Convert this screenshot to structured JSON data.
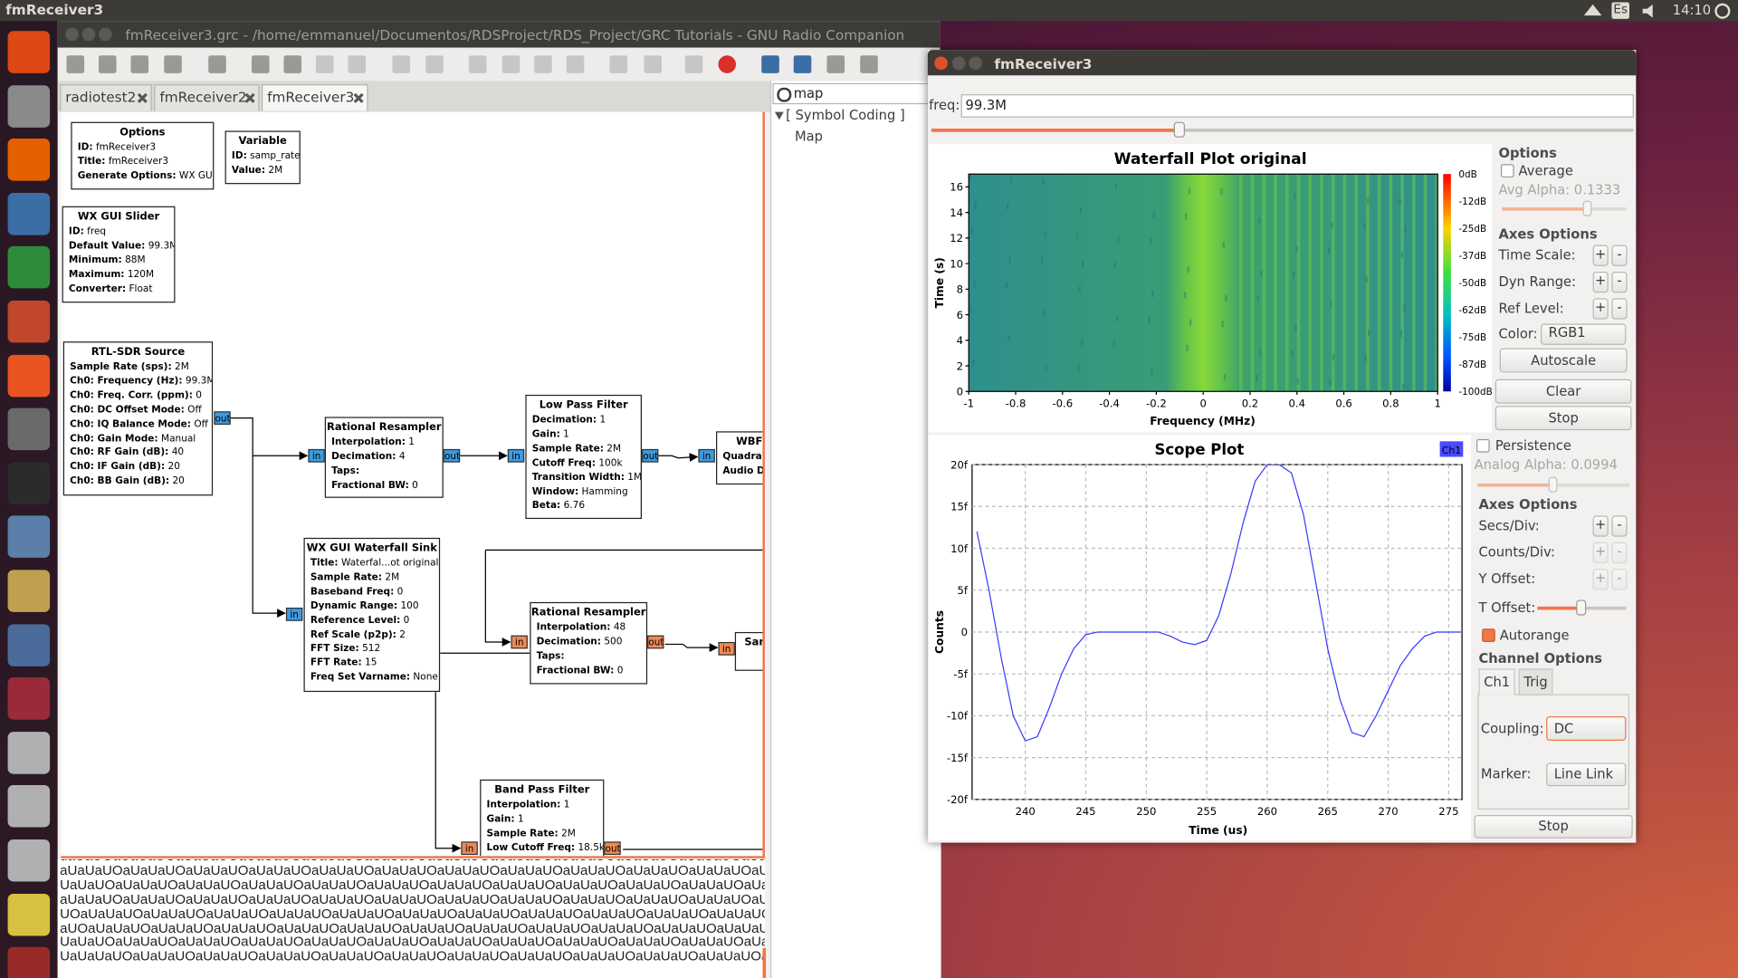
{
  "top_bar": {
    "title": "fmReceiver3",
    "keyboard": "Es",
    "time": "14:10"
  },
  "grc": {
    "title": "fmReceiver3.grc - /home/emmanuel/Documentos/RDSProject/RDS_Project/GRC Tutorials - GNU Radio Companion",
    "tabs": [
      "radiotest2",
      "fmReceiver2",
      "fmReceiver3"
    ],
    "search": "map",
    "tree": {
      "category": "[ Symbol Coding ]",
      "item": "Map"
    },
    "blocks": [
      {
        "title": "Options",
        "params": [
          [
            "ID:",
            "fmReceiver3"
          ],
          [
            "Title:",
            "fmReceiver3"
          ],
          [
            "Generate Options:",
            "WX GUI"
          ]
        ]
      },
      {
        "title": "Variable",
        "params": [
          [
            "ID:",
            "samp_rate"
          ],
          [
            "Value:",
            "2M"
          ]
        ]
      },
      {
        "title": "WX GUI Slider",
        "params": [
          [
            "ID:",
            "freq"
          ],
          [
            "Default Value:",
            "99.3M"
          ],
          [
            "Minimum:",
            "88M"
          ],
          [
            "Maximum:",
            "120M"
          ],
          [
            "Converter:",
            "Float"
          ]
        ]
      },
      {
        "title": "RTL-SDR Source",
        "params": [
          [
            "Sample Rate (sps):",
            "2M"
          ],
          [
            "Ch0: Frequency (Hz):",
            "99.3M"
          ],
          [
            "Ch0: Freq. Corr. (ppm):",
            "0"
          ],
          [
            "Ch0: DC Offset Mode:",
            "Off"
          ],
          [
            "Ch0: IQ Balance Mode:",
            "Off"
          ],
          [
            "Ch0: Gain Mode:",
            "Manual"
          ],
          [
            "Ch0: RF Gain (dB):",
            "40"
          ],
          [
            "Ch0: IF Gain (dB):",
            "20"
          ],
          [
            "Ch0: BB Gain (dB):",
            "20"
          ]
        ],
        "ports": [
          "out"
        ]
      },
      {
        "title": "Rational Resampler",
        "params": [
          [
            "Interpolation:",
            "1"
          ],
          [
            "Decimation:",
            "4"
          ],
          [
            "Taps:"
          ],
          [
            "Fractional BW:",
            "0"
          ]
        ],
        "ports": [
          "in",
          "out"
        ]
      },
      {
        "title": "Low Pass Filter",
        "params": [
          [
            "Decimation:",
            "1"
          ],
          [
            "Gain:",
            "1"
          ],
          [
            "Sample Rate:",
            "2M"
          ],
          [
            "Cutoff Freq:",
            "100k"
          ],
          [
            "Transition Width:",
            "1M"
          ],
          [
            "Window:",
            "Hamming"
          ],
          [
            "Beta:",
            "6.76"
          ]
        ],
        "ports": [
          "in",
          "out"
        ]
      },
      {
        "title": "WBF",
        "params": [
          [
            "Quadra"
          ],
          [
            "Audio D"
          ]
        ],
        "ports": [
          "in"
        ]
      },
      {
        "title": "WX GUI Waterfall Sink",
        "params": [
          [
            "Title:",
            "Waterfal...ot original"
          ],
          [
            "Sample Rate:",
            "2M"
          ],
          [
            "Baseband Freq:",
            "0"
          ],
          [
            "Dynamic Range:",
            "100"
          ],
          [
            "Reference Level:",
            "0"
          ],
          [
            "Ref Scale (p2p):",
            "2"
          ],
          [
            "FFT Size:",
            "512"
          ],
          [
            "FFT Rate:",
            "15"
          ],
          [
            "Freq Set Varname:",
            "None"
          ]
        ],
        "ports": [
          "in"
        ]
      },
      {
        "title": "Rational Resampler",
        "params": [
          [
            "Interpolation:",
            "48"
          ],
          [
            "Decimation:",
            "500"
          ],
          [
            "Taps:"
          ],
          [
            "Fractional BW:",
            "0"
          ]
        ],
        "ports": [
          "in",
          "out"
        ]
      },
      {
        "title": "Sam",
        "params": [],
        "ports": [
          "in"
        ]
      },
      {
        "title": "Band Pass Filter",
        "params": [
          [
            "Interpolation:",
            "1"
          ],
          [
            "Gain:",
            "1"
          ],
          [
            "Sample Rate:",
            "2M"
          ],
          [
            "Low Cutoff Freq:",
            "18.5k"
          ]
        ],
        "ports": [
          "in",
          "out"
        ]
      }
    ],
    "console": [
      "uaUaUOaUaUaUOaUaUaUOaUaUaUOaUaUaUOaUaUaUOaUaUaUOaUaUaUOaUaUaUOaUaUaUOaUaUaUOaUaUaUOaUaUaUO",
      "aUaUaUOaUaUaUOaUaUaUOaUaUaUOaUaUaUOaUaUaUOaUaUaUOaUaUaUOaUaUaUOaUaUaUOaUaUaUOaUaUaUOaUaUaUOaUa",
      "UaUaUOaUaUaUOaUaUaUOaUaUaUOaUaUaUOaUaUaUOaUaUaUOaUaUaUOaUaUaUOaUaUaUOaUaUaUOaUaUaUOaUaUaUOaUaUaUO",
      "aUaUaUOaUaUaUOaUaUaUOaUaUaUOaUaUaUOaUaUaUOaUaUaUOaUaUaUOaUaUaUOaUaUaUOaUaUaUOaUaUaUOaUaUaUOaUaUa",
      "UOaUaUaUOaUaUaUOaUaUaUOaUaUaUOaUaUaUOaUaUaUOaUaUaUOaUaUaUOaUaUaUOaUaUaUOaUaUaUOaUaUaUOaUaUaUOaUaU",
      "aUOaUaUaUOaUaUaUOaUaUaUOaUaUaUOaUaUaUOaUaUaUOaUaUaUOaUaUaUOaUaUaUOaUaUaUOaUaUaUOaUaUaUOaUaUaUOaU",
      "UaUaUOaUaUaUOaUaUaUOaUaUaUOaUaUaUOaUaUaUOaUaUaUOaUaUaUOaUaUaUOaUaUaUOaUaUaUOaUaUaUOaUaUaUO",
      "UaUaUaUOaUaUaUOaUaUaUOaUaUaUOaUaUaUOaUaUaUOaUaUaUOaUaUaUOaUaUaUOaUaUaUOaUaUaUOaUaU"
    ]
  },
  "plot_window": {
    "title": "fmReceiver3",
    "freq_label": "freq:",
    "freq_value": "99.3M",
    "waterfall": {
      "type": "heatmap",
      "title": "Waterfall Plot original",
      "xlabel": "Frequency (MHz)",
      "ylabel": "Time (s)",
      "xlim": [
        -1,
        1
      ],
      "xticks": [
        -1,
        -0.8,
        -0.6,
        -0.4,
        -0.2,
        0,
        0.2,
        0.4,
        0.6,
        0.8,
        1
      ],
      "ylim": [
        0,
        17
      ],
      "yticks": [
        0,
        2,
        4,
        6,
        8,
        10,
        12,
        14,
        16
      ],
      "colorbar": [
        "0dB",
        "-12dB",
        "-25dB",
        "-37dB",
        "-50dB",
        "-62dB",
        "-75dB",
        "-87dB",
        "-100dB"
      ]
    },
    "waterfall_options": {
      "header": "Options",
      "average": "Average",
      "avg_alpha": "Avg Alpha: 0.1333",
      "axes_header": "Axes Options",
      "rows": [
        "Time Scale:",
        "Dyn Range:",
        "Ref Level:"
      ],
      "plus": "+",
      "minus": "-",
      "color_label": "Color:",
      "color_value": "RGB1",
      "autoscale": "Autoscale",
      "clear": "Clear",
      "stop": "Stop"
    },
    "scope": {
      "type": "line",
      "title": "Scope Plot",
      "channel": "Ch1",
      "xlabel": "Time (us)",
      "ylabel": "Counts",
      "color": "#3a3aff",
      "xlim": [
        235.6,
        276.1
      ],
      "xticks": [
        240,
        245,
        250,
        255,
        260,
        265,
        270,
        275
      ],
      "ylim": [
        -20,
        20
      ],
      "yticks": [
        {
          "value": -20,
          "label": "-20f"
        },
        {
          "value": -15,
          "label": "-15f"
        },
        {
          "value": -10,
          "label": "-10f"
        },
        {
          "value": -5,
          "label": "-5f"
        },
        0,
        {
          "value": 5,
          "label": "5f"
        },
        {
          "value": 10,
          "label": "10f"
        },
        {
          "value": 15,
          "label": "15f"
        },
        {
          "value": 20,
          "label": "20f"
        }
      ],
      "grid": true,
      "x": [
        236,
        237,
        238,
        239,
        240,
        241,
        242,
        243,
        244,
        245,
        246,
        247,
        248,
        249,
        250,
        251,
        252,
        253,
        254,
        255,
        256,
        257,
        258,
        259,
        260,
        261,
        262,
        263,
        264,
        265,
        266,
        267,
        268,
        269,
        270,
        271,
        272,
        273,
        274,
        275,
        276
      ],
      "values": [
        12,
        5,
        -3,
        -10,
        -13,
        -12.5,
        -9,
        -5,
        -2,
        -0.3,
        0,
        0,
        0,
        0,
        0,
        0,
        -0.5,
        -1.2,
        -1.5,
        -1,
        2,
        7,
        13,
        18,
        20,
        20,
        19,
        14,
        6,
        -2,
        -8,
        -12,
        -12.5,
        -10,
        -7,
        -4,
        -2,
        -0.5,
        0,
        0,
        0
      ]
    },
    "scope_options": {
      "persistence": "Persistence",
      "analog_alpha": "Analog Alpha: 0.0994",
      "axes_header": "Axes Options",
      "rows": [
        "Secs/Div:",
        "Counts/Div:",
        "Y Offset:"
      ],
      "t_offset": "T Offset:",
      "autorange": "Autorange",
      "channel_header": "Channel Options",
      "tabs": [
        "Ch1",
        "Trig"
      ],
      "coupling_label": "Coupling:",
      "coupling_value": "DC",
      "marker_label": "Marker:",
      "marker_value": "Line Link",
      "stop": "Stop"
    }
  }
}
